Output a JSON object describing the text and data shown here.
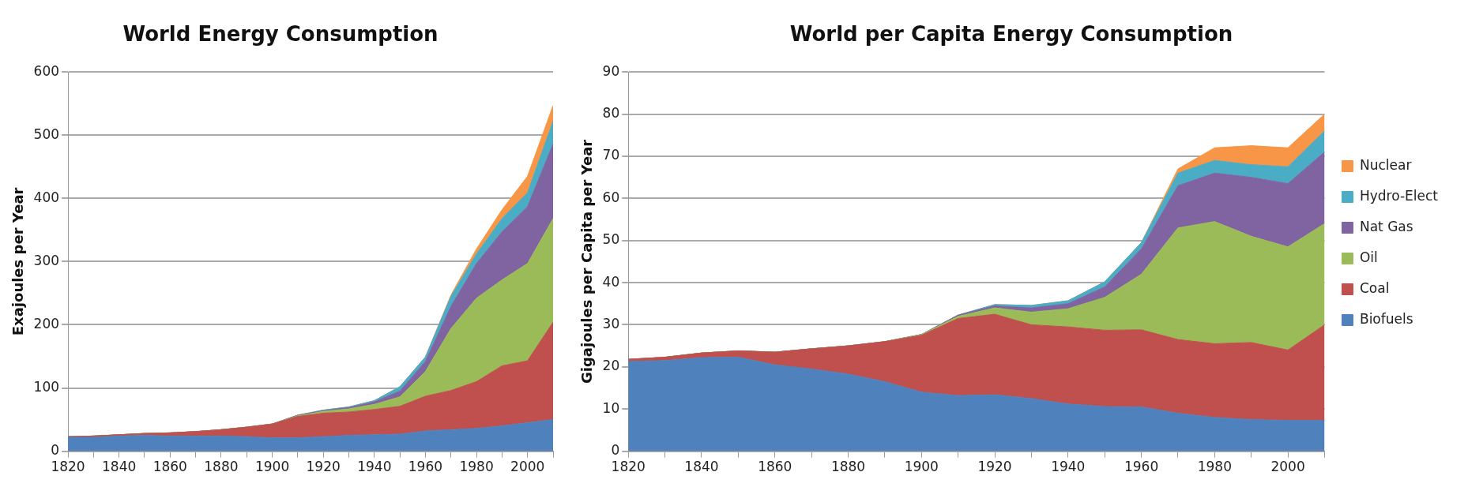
{
  "chart_data": [
    {
      "type": "area",
      "title": "World Energy Consumption",
      "ylabel": "Exajoules per Year",
      "stacked": true,
      "grid": "y",
      "legend": false,
      "categories": [
        "1820",
        null,
        "1840",
        null,
        "1860",
        null,
        "1880",
        null,
        "1900",
        null,
        "1920",
        null,
        "1940",
        null,
        "1960",
        null,
        "1980",
        null,
        "2000",
        null
      ],
      "ylim": [
        0,
        600
      ],
      "yticks": [
        0,
        100,
        200,
        300,
        400,
        500,
        600
      ],
      "series": [
        {
          "color": "#4f81bd",
          "values": [
            22,
            22,
            24,
            25,
            24,
            24,
            24,
            23,
            21,
            21,
            23,
            25,
            26,
            27,
            32,
            34,
            36,
            40,
            45,
            50
          ]
        },
        {
          "color": "#c0504d",
          "values": [
            1,
            2,
            2,
            3,
            5,
            7,
            10,
            15,
            22,
            34,
            37,
            37,
            40,
            44,
            55,
            62,
            74,
            95,
            98,
            154
          ]
        },
        {
          "color": "#9bbb59",
          "values": [
            0,
            0,
            0,
            0,
            0,
            0,
            0,
            0,
            0,
            1,
            3,
            5,
            8,
            15,
            39,
            98,
            132,
            136,
            154,
            164
          ]
        },
        {
          "color": "#8064a2",
          "values": [
            0,
            0,
            0,
            0,
            0,
            0,
            0,
            0,
            0,
            1,
            1,
            2,
            4,
            9,
            16,
            35,
            55,
            76,
            90,
            118
          ]
        },
        {
          "color": "#4bacc6",
          "values": [
            0,
            0,
            0,
            0,
            0,
            0,
            0,
            0,
            0,
            0,
            1,
            1,
            2,
            7,
            7,
            16,
            15,
            21,
            22,
            36
          ]
        },
        {
          "color": "#f79646",
          "values": [
            0,
            0,
            0,
            0,
            0,
            0,
            0,
            0,
            0,
            0,
            0,
            0,
            0,
            0,
            0,
            2,
            8,
            14,
            26,
            25
          ]
        }
      ]
    },
    {
      "type": "area",
      "title": "World per Capita Energy Consumption",
      "ylabel": "Gigajoules per Capita per Year",
      "stacked": true,
      "grid": "y",
      "legend": "right",
      "categories": [
        "1820",
        null,
        "1840",
        null,
        "1860",
        null,
        "1880",
        null,
        "1900",
        null,
        "1920",
        null,
        "1940",
        null,
        "1960",
        null,
        "1980",
        null,
        "2000",
        null
      ],
      "ylim": [
        0,
        90
      ],
      "yticks": [
        0,
        10,
        20,
        30,
        40,
        50,
        60,
        70,
        80,
        90
      ],
      "series": [
        {
          "name": "Biofuels",
          "color": "#4f81bd",
          "values": [
            21.3,
            21.5,
            22.2,
            22.3,
            20.5,
            19.5,
            18.3,
            16.5,
            14,
            13.2,
            13.4,
            12.5,
            11.2,
            10.6,
            10.5,
            9,
            8,
            7.5,
            7.3,
            7.3
          ]
        },
        {
          "name": "Coal",
          "color": "#c0504d",
          "values": [
            0.5,
            0.8,
            1.1,
            1.5,
            3,
            4.8,
            6.7,
            9.5,
            13.5,
            18.3,
            19.1,
            17.5,
            18.3,
            18.1,
            18.3,
            17.5,
            17.5,
            18.3,
            16.7,
            22.7
          ]
        },
        {
          "name": "Oil",
          "color": "#9bbb59",
          "values": [
            0,
            0,
            0,
            0,
            0,
            0,
            0,
            0,
            0.2,
            0.5,
            1.5,
            3,
            4.3,
            7.8,
            13.2,
            26.5,
            29,
            25.2,
            24.5,
            24
          ]
        },
        {
          "name": "Nat Gas",
          "color": "#8064a2",
          "values": [
            0,
            0,
            0,
            0,
            0,
            0,
            0,
            0,
            0,
            0.3,
            0.5,
            1,
            1.2,
            2.5,
            6,
            10,
            11.5,
            14,
            15,
            17
          ]
        },
        {
          "name": "Hydro-Elect",
          "color": "#4bacc6",
          "values": [
            0,
            0,
            0,
            0,
            0,
            0,
            0,
            0,
            0,
            0,
            0.3,
            0.6,
            0.7,
            1.2,
            1.5,
            3,
            3,
            3,
            4,
            5
          ]
        },
        {
          "name": "Nuclear",
          "color": "#f79646",
          "values": [
            0,
            0,
            0,
            0,
            0,
            0,
            0,
            0,
            0,
            0,
            0,
            0,
            0,
            0,
            0,
            1,
            3,
            4.5,
            4.5,
            4
          ]
        }
      ]
    }
  ]
}
